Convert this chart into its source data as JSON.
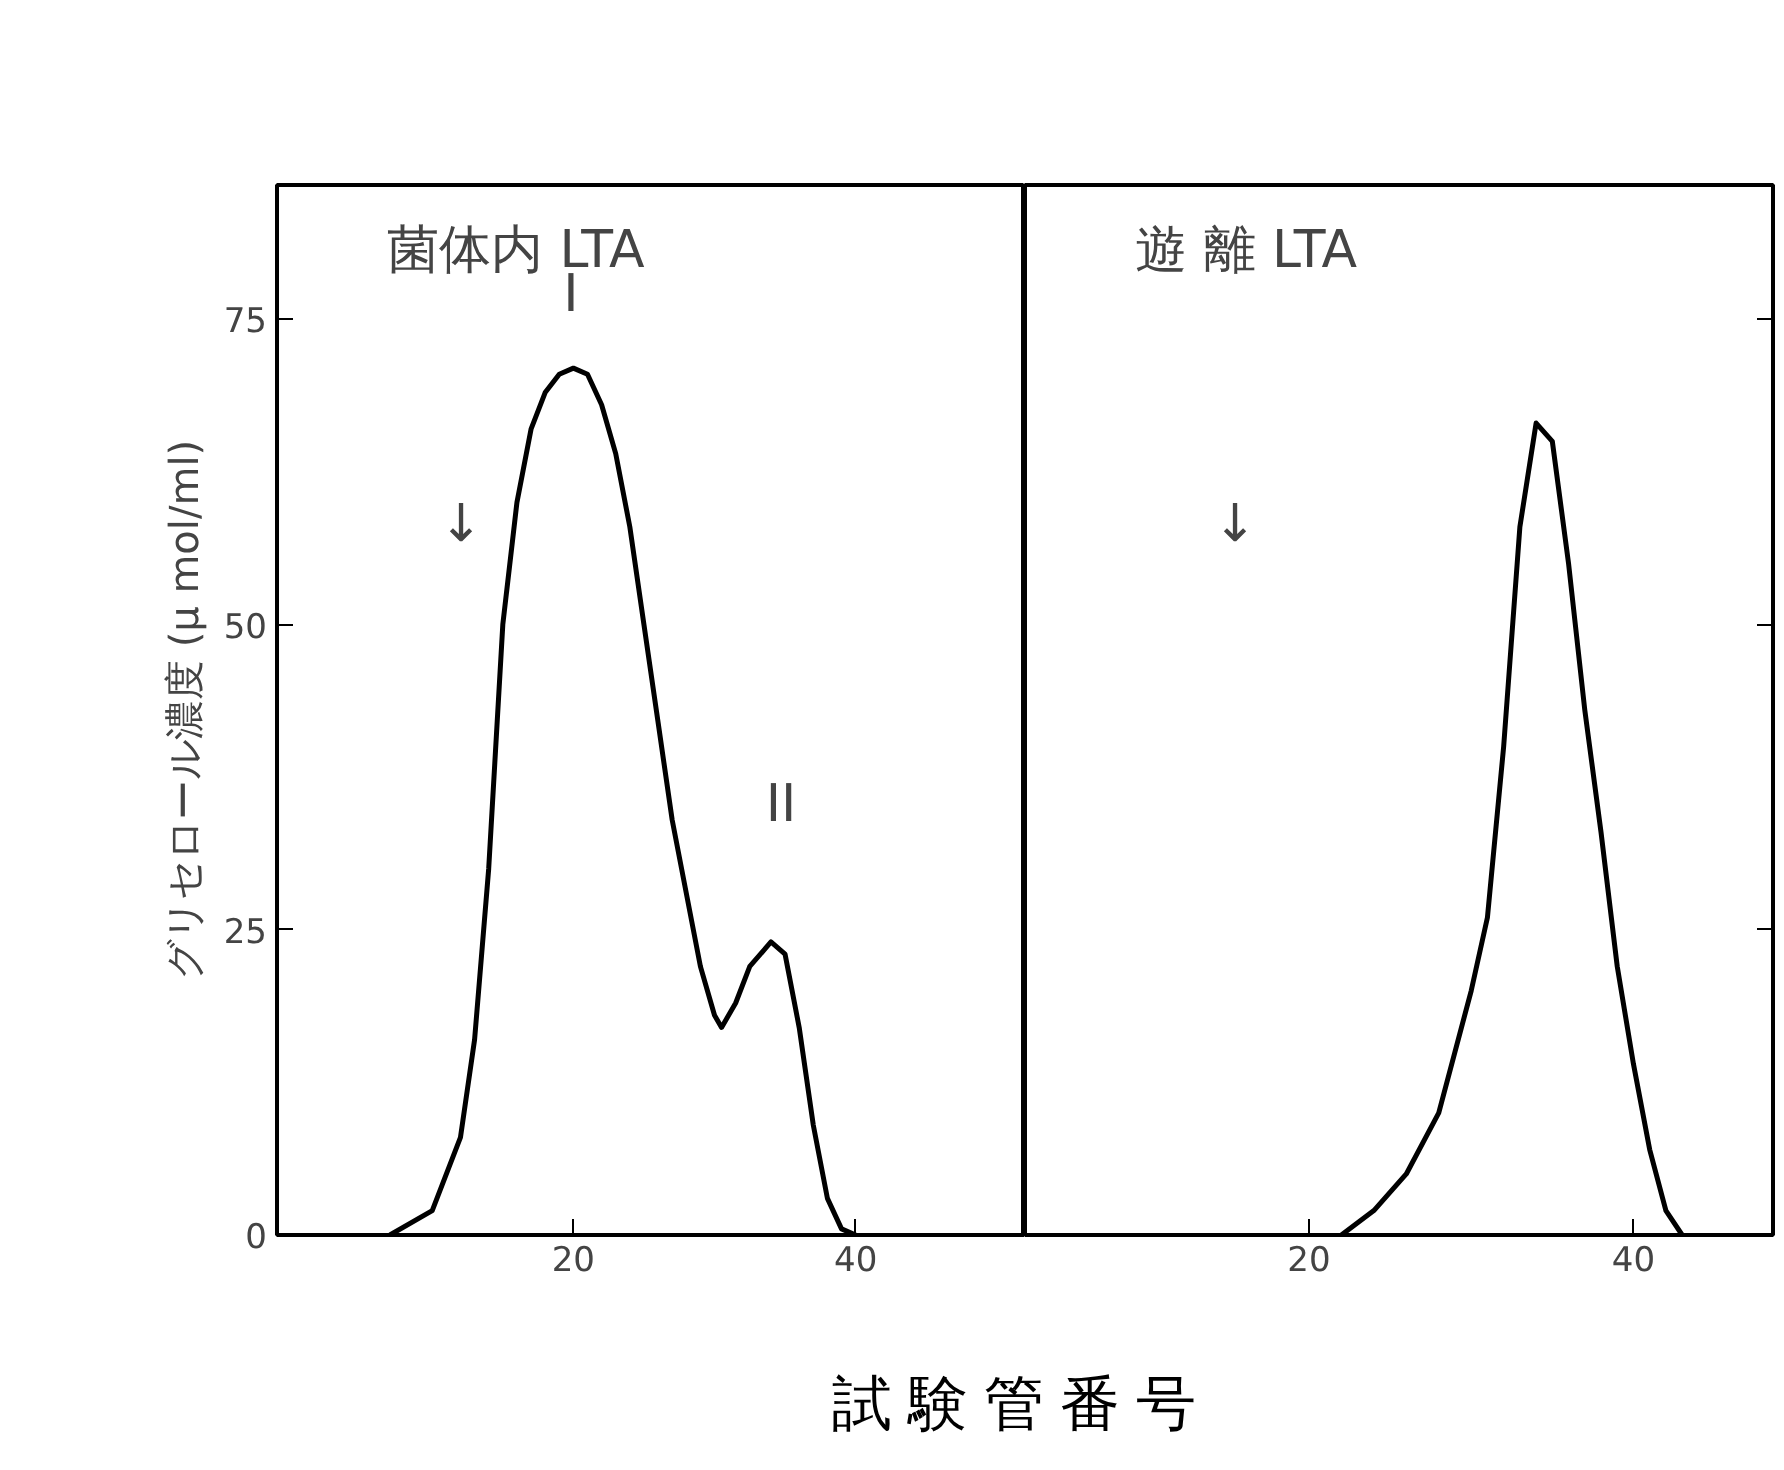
{
  "chart_data": [
    {
      "type": "line",
      "title": "菌体内 LTA",
      "ylabel": "グリセロール濃度 (μ mol/ml)",
      "xlabel": "試験管番号",
      "x": [
        7,
        10,
        12,
        13,
        14,
        15,
        16,
        17,
        18,
        19,
        20,
        21,
        22,
        23,
        24,
        25,
        26,
        27,
        28,
        29,
        30,
        30.5,
        31.5,
        32.5,
        34,
        35,
        36,
        37,
        38,
        39,
        40
      ],
      "values": [
        0,
        2,
        8,
        16,
        30,
        50,
        60,
        66,
        69,
        70.5,
        71,
        70.5,
        68,
        64,
        58,
        50,
        42,
        34,
        28,
        22,
        18,
        17,
        19,
        22,
        24,
        23,
        17,
        9,
        3,
        0.5,
        0
      ],
      "color": "#000000",
      "xlim": [
        -1,
        52
      ],
      "ylim": [
        0,
        86
      ],
      "xticks": [
        20,
        40
      ],
      "yticks": [
        0,
        25,
        50,
        75
      ],
      "annotations": [
        "I",
        "II",
        "↓"
      ],
      "grid": false
    },
    {
      "type": "line",
      "title": "遊 離 LTA",
      "x": [
        22,
        24,
        26,
        28,
        29,
        30,
        31,
        32,
        33,
        34,
        35,
        36,
        37,
        38,
        39,
        40,
        41,
        42,
        43
      ],
      "values": [
        0,
        2,
        5,
        10,
        15,
        20,
        26,
        40,
        58,
        66.5,
        65,
        55,
        43,
        33,
        22,
        14,
        7,
        2,
        0
      ],
      "color": "#000000",
      "xlim": [
        2.5,
        48.6
      ],
      "ylim": [
        0,
        86
      ],
      "xticks": [
        20,
        40
      ],
      "yticks": [
        0,
        25,
        50,
        75
      ],
      "tick_labels": "x",
      "annotations": [
        "↓"
      ],
      "grid": false
    }
  ]
}
